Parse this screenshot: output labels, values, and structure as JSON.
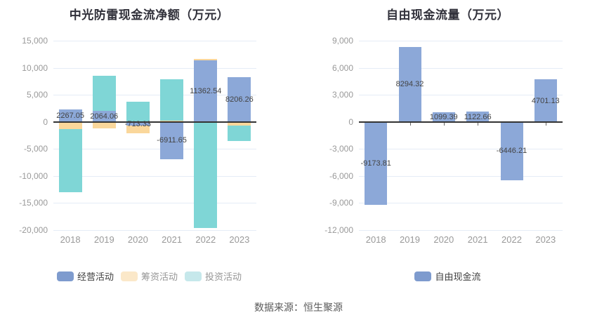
{
  "footer": {
    "source_text": "数据来源：恒生聚源"
  },
  "palette": {
    "background": "#ffffff",
    "title": "#30303a",
    "axis_label": "#999999",
    "data_label": "#444444",
    "grid": "#e5ecf6",
    "zero_line": "#333333",
    "footer": "#5a5a5a",
    "bar_blue": "#8CA8D8",
    "bar_orange": "#FAD79B",
    "bar_teal": "#7FD6D6"
  },
  "chart_data": [
    {
      "type": "bar",
      "stacked": true,
      "title": "中光防雷现金流净额（万元）",
      "categories": [
        "2018",
        "2019",
        "2020",
        "2021",
        "2022",
        "2023"
      ],
      "series": [
        {
          "key": "operating",
          "name": "经营活动",
          "color": "#8CA8D8",
          "legend_color": "#7E9BCE",
          "values": [
            2267.05,
            2064.06,
            -713.33,
            -6911.65,
            11362.54,
            8206.26
          ],
          "data_labels": [
            "2267.05",
            "2064.06",
            "-713.33",
            "-6911.65",
            "11362.54",
            "8206.26"
          ]
        },
        {
          "key": "financing",
          "name": "筹资活动",
          "color": "#FAD79B",
          "legend_color": "#FBE8C9",
          "values": [
            -1350,
            -1250,
            -1400,
            250,
            250,
            -650
          ]
        },
        {
          "key": "investing",
          "name": "投资活动",
          "color": "#7FD6D6",
          "legend_color": "#C6E8EB",
          "values": [
            -11700,
            6400,
            3700,
            7600,
            -19600,
            -2900
          ]
        }
      ],
      "legend_text_colors": [
        "#3f3f3f",
        "#969696",
        "#969696"
      ],
      "y_axis": {
        "min": -20000,
        "max": 15000,
        "step": 5000,
        "tick_labels": [
          "15,000",
          "10,000",
          "5,000",
          "0",
          "-5,000",
          "-10,000",
          "-15,000",
          "-20,000"
        ]
      },
      "grid_on": true,
      "legend_position": "bottom"
    },
    {
      "type": "bar",
      "stacked": false,
      "title": "自由现金流量（万元）",
      "categories": [
        "2018",
        "2019",
        "2020",
        "2021",
        "2022",
        "2023"
      ],
      "series": [
        {
          "key": "free-cashflow",
          "name": "自由现金流",
          "color": "#8CA8D8",
          "legend_color": "#7E9BCE",
          "values": [
            -9173.81,
            8294.32,
            1099.39,
            1122.66,
            -6446.21,
            4701.13
          ],
          "data_labels": [
            "-9173.81",
            "8294.32",
            "1099.39",
            "1122.66",
            "-6446.21",
            "4701.13"
          ]
        }
      ],
      "legend_text_colors": [
        "#3f3f3f"
      ],
      "y_axis": {
        "min": -12000,
        "max": 9000,
        "step": 3000,
        "tick_labels": [
          "9,000",
          "6,000",
          "3,000",
          "0",
          "-3,000",
          "-6,000",
          "-9,000",
          "-12,000"
        ]
      },
      "grid_on": true,
      "legend_position": "bottom"
    }
  ]
}
